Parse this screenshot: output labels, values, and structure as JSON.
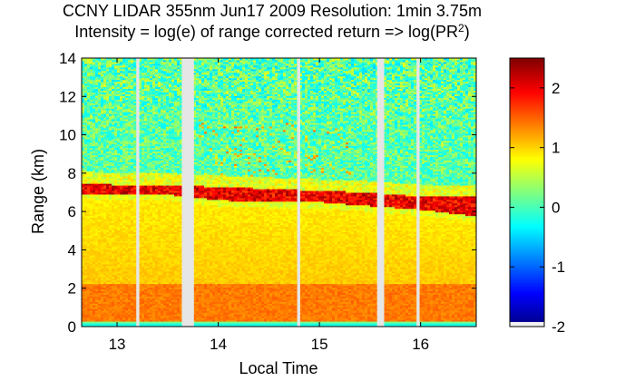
{
  "chart_data": {
    "type": "heatmap",
    "title_line1": "CCNY LIDAR 355nm Jun17 2009 Resolution: 1min 3.75m",
    "title_line2_prefix": "Intensity = log(e) of range corrected return => log(PR",
    "title_line2_sup": "2",
    "title_line2_suffix": ")",
    "xlabel": "Local Time",
    "ylabel": "Range (km)",
    "xlim": [
      12.65,
      16.55
    ],
    "ylim": [
      0,
      14
    ],
    "xticks": [
      13,
      14,
      15,
      16
    ],
    "yticks": [
      0,
      2,
      4,
      6,
      8,
      10,
      12,
      14
    ],
    "colorbar": {
      "clim": [
        -2,
        2.5
      ],
      "ticks": [
        -2,
        -1,
        0,
        1,
        2
      ],
      "colormap": "jet"
    },
    "data_gaps": [
      {
        "start": 13.19,
        "end": 13.22
      },
      {
        "start": 13.64,
        "end": 13.76
      },
      {
        "start": 14.78,
        "end": 14.81
      },
      {
        "start": 15.57,
        "end": 15.64
      },
      {
        "start": 15.96,
        "end": 15.99
      }
    ],
    "features": {
      "boundary_layer": {
        "range_km": [
          0.3,
          2.2
        ],
        "intensity": 1.4
      },
      "residual_layer_intensity": 0.9,
      "cloud_layer": [
        {
          "time": 12.7,
          "base_km": 6.9,
          "top_km": 7.5
        },
        {
          "time": 13.0,
          "base_km": 6.9,
          "top_km": 7.4
        },
        {
          "time": 13.5,
          "base_km": 6.9,
          "top_km": 7.4
        },
        {
          "time": 14.0,
          "base_km": 6.6,
          "top_km": 7.3
        },
        {
          "time": 14.5,
          "base_km": 6.5,
          "top_km": 7.2
        },
        {
          "time": 15.0,
          "base_km": 6.5,
          "top_km": 7.1
        },
        {
          "time": 15.5,
          "base_km": 6.3,
          "top_km": 7.0
        },
        {
          "time": 16.0,
          "base_km": 6.1,
          "top_km": 6.8
        },
        {
          "time": 16.5,
          "base_km": 5.8,
          "top_km": 6.8
        }
      ],
      "free_troposphere_intensity": 0.1
    }
  }
}
